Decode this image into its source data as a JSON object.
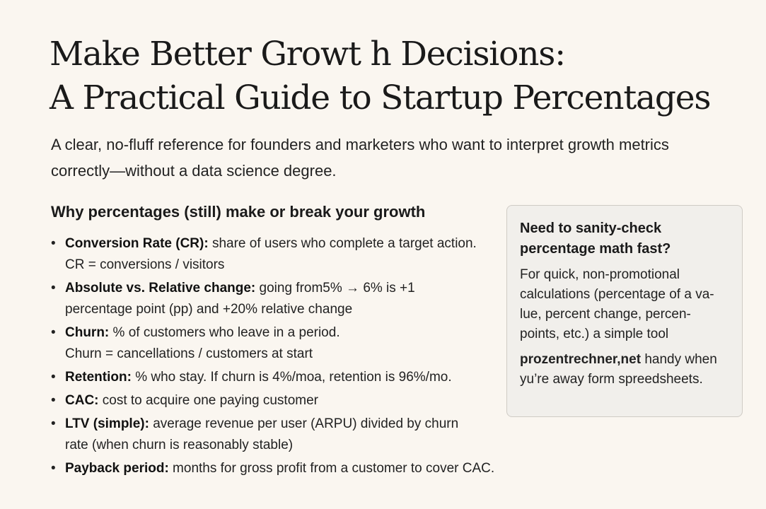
{
  "title": {
    "line1": "Make Better Growt h Decisions:",
    "line2": "A Practical Guide to Startup Percentages"
  },
  "subtitle": "A clear, no-fluff reference for founders and marketers who want to interpret growth metrics correctly—without a data science degree.",
  "section": {
    "heading": "Why percentages (still) make or break your growth",
    "items": [
      {
        "term": "Conversion Rate (CR):",
        "text": " share of users who complete a target action. CR = conversions / visitors"
      },
      {
        "term": "Absolute vs. Relative change:",
        "text": " going from5% → 6% is +1 percentage point (pp) and +20% relative change"
      },
      {
        "term": "Churn:",
        "text": " % of customers who leave in a period. Churn = cancellations / customers at start"
      },
      {
        "term": "Retention:",
        "text": " % who stay. If churn is 4%/moa, retention is 96%/mo."
      },
      {
        "term": "CAC:",
        "text": " cost to acquire one paying customer"
      },
      {
        "term": "LTV (simple):",
        "text": " average revenue per user (ARPU) divided by churn rate (when churn is reasonably stable)"
      },
      {
        "term": "Payback period:",
        "text": " months for gross profit from a customer to cover CAC."
      }
    ]
  },
  "callout": {
    "heading": "Need to sanity-check percentage math fast?",
    "body": "For quick, non-promotional calculations (percentage of a va-lue, percent change, percen-points, etc.) a simple tool",
    "link": "prozentrechner,net",
    "tail": " handy when yu’re away form spreedsheets."
  }
}
